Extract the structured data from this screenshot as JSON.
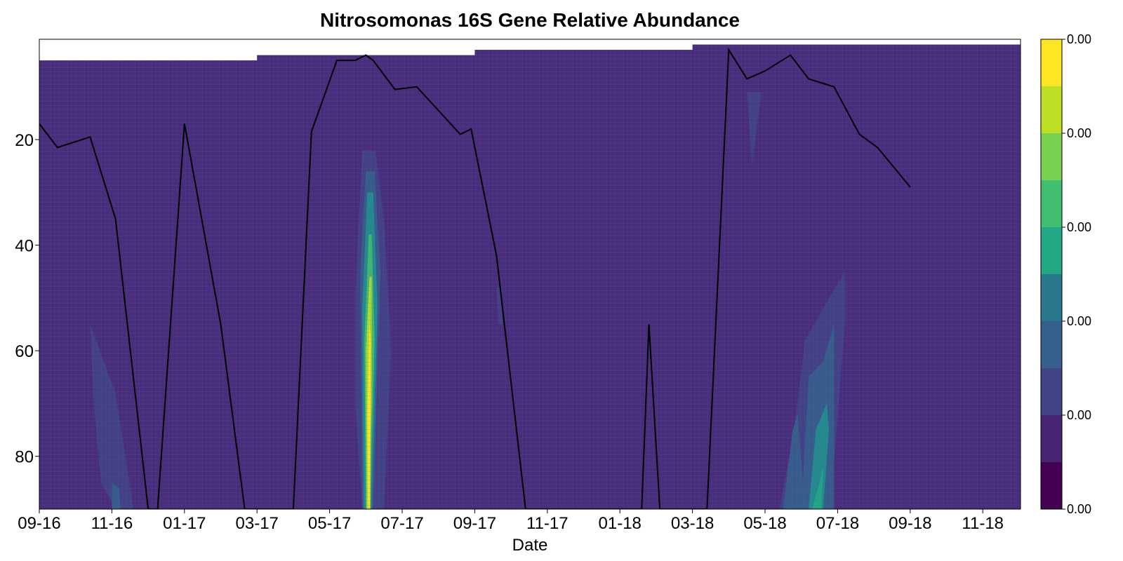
{
  "chart_data": {
    "type": "heatmap",
    "title": "Nitrosomonas 16S Gene Relative Abundance",
    "xlabel": "Date",
    "ylabel": "",
    "x_tick_labels": [
      "09-16",
      "11-16",
      "01-17",
      "03-17",
      "05-17",
      "07-17",
      "09-17",
      "11-17",
      "01-18",
      "03-18",
      "05-18",
      "07-18",
      "09-18",
      "11-18"
    ],
    "y_ticks": [
      20,
      40,
      60,
      80
    ],
    "ylim": [
      90,
      1
    ],
    "y_inverted": true,
    "colorbar": {
      "colormap": "viridis",
      "levels": 10,
      "tick_labels": [
        "0.00",
        "0.00",
        "0.00",
        "0.00",
        "0.00",
        "0.00"
      ]
    },
    "surface_depth": [
      {
        "x": 0.0,
        "y": 5
      },
      {
        "x": 3.0,
        "y": 5
      },
      {
        "x": 3.0,
        "y": 4
      },
      {
        "x": 6.0,
        "y": 4
      },
      {
        "x": 6.0,
        "y": 3
      },
      {
        "x": 9.0,
        "y": 3
      },
      {
        "x": 9.0,
        "y": 2
      },
      {
        "x": 12.0,
        "y": 2
      }
    ],
    "line_series": [
      {
        "x": 0.0,
        "y": 17
      },
      {
        "x": 0.25,
        "y": 21.5
      },
      {
        "x": 0.7,
        "y": 19.5
      },
      {
        "x": 1.05,
        "y": 35
      },
      {
        "x": 1.5,
        "y": 90
      },
      {
        "x": 1.63,
        "y": 90
      },
      {
        "x": 2.0,
        "y": 17
      },
      {
        "x": 2.5,
        "y": 55
      },
      {
        "x": 2.83,
        "y": 90
      },
      {
        "x": 3.5,
        "y": 90
      },
      {
        "x": 3.75,
        "y": 18.5
      },
      {
        "x": 4.1,
        "y": 5
      },
      {
        "x": 4.35,
        "y": 5
      },
      {
        "x": 4.5,
        "y": 4
      },
      {
        "x": 4.6,
        "y": 5
      },
      {
        "x": 4.9,
        "y": 10.5
      },
      {
        "x": 5.2,
        "y": 10
      },
      {
        "x": 5.8,
        "y": 19
      },
      {
        "x": 5.95,
        "y": 18
      },
      {
        "x": 6.3,
        "y": 42
      },
      {
        "x": 6.7,
        "y": 90
      },
      {
        "x": 8.3,
        "y": 90
      },
      {
        "x": 8.4,
        "y": 55
      },
      {
        "x": 8.55,
        "y": 90
      },
      {
        "x": 9.2,
        "y": 90
      },
      {
        "x": 9.5,
        "y": 3
      },
      {
        "x": 9.75,
        "y": 8.5
      },
      {
        "x": 10.0,
        "y": 7
      },
      {
        "x": 10.35,
        "y": 4
      },
      {
        "x": 10.6,
        "y": 8.5
      },
      {
        "x": 10.95,
        "y": 10
      },
      {
        "x": 11.3,
        "y": 19
      },
      {
        "x": 11.55,
        "y": 21.5
      },
      {
        "x": 12.0,
        "y": 29
      }
    ],
    "abundance_patches": [
      {
        "x": [
          0.7,
          1.05,
          1.3,
          1.05,
          0.85,
          0.75
        ],
        "y": [
          55,
          68,
          90,
          90,
          85,
          70
        ],
        "level": 1
      },
      {
        "x": [
          1.0,
          1.1,
          1.12,
          1.0
        ],
        "y": [
          85,
          86,
          90,
          90
        ],
        "level": 2
      },
      {
        "x": [
          4.35,
          4.45,
          4.63,
          4.75,
          4.85,
          4.75,
          4.45,
          4.35
        ],
        "y": [
          50,
          22,
          22,
          35,
          60,
          90,
          90,
          70
        ],
        "level": 1
      },
      {
        "x": [
          4.42,
          4.5,
          4.62,
          4.7,
          4.6,
          4.45
        ],
        "y": [
          45,
          26,
          26,
          45,
          90,
          90
        ],
        "level": 2
      },
      {
        "x": [
          4.45,
          4.52,
          4.6,
          4.66,
          4.58,
          4.47
        ],
        "y": [
          52,
          30,
          30,
          52,
          90,
          90
        ],
        "level": 4
      },
      {
        "x": [
          4.48,
          4.54,
          4.58,
          4.62,
          4.56,
          4.5
        ],
        "y": [
          58,
          38,
          38,
          58,
          90,
          90
        ],
        "level": 6
      },
      {
        "x": [
          4.5,
          4.55,
          4.58,
          4.58,
          4.53,
          4.51
        ],
        "y": [
          60,
          46,
          46,
          70,
          90,
          90
        ],
        "level": 8
      },
      {
        "x": [
          4.52,
          4.55,
          4.57,
          4.56,
          4.53
        ],
        "y": [
          72,
          55,
          58,
          90,
          90
        ],
        "level": 9
      },
      {
        "x": [
          6.3,
          6.35,
          6.38,
          6.33
        ],
        "y": [
          48,
          48,
          55,
          55
        ],
        "level": 1
      },
      {
        "x": [
          9.75,
          9.95,
          9.82
        ],
        "y": [
          11,
          11,
          25
        ],
        "level": 1
      },
      {
        "x": [
          10.2,
          10.4,
          10.55,
          10.8,
          11.1,
          11.1,
          10.9,
          10.4,
          10.2
        ],
        "y": [
          90,
          75,
          58,
          52,
          45,
          55,
          90,
          90,
          90
        ],
        "level": 1
      },
      {
        "x": [
          10.25,
          10.38,
          10.45,
          10.55,
          10.48,
          10.32
        ],
        "y": [
          90,
          75,
          72,
          90,
          90,
          90
        ],
        "level": 2
      },
      {
        "x": [
          10.5,
          10.6,
          10.8,
          10.95,
          10.95,
          10.85,
          10.6
        ],
        "y": [
          90,
          65,
          62,
          55,
          90,
          90,
          90
        ],
        "level": 2
      },
      {
        "x": [
          10.6,
          10.7,
          10.85,
          10.88,
          10.8,
          10.65
        ],
        "y": [
          90,
          75,
          70,
          75,
          90,
          90
        ],
        "level": 4
      },
      {
        "x": [
          10.65,
          10.75,
          10.8,
          10.78,
          10.68
        ],
        "y": [
          90,
          85,
          82,
          90,
          90
        ],
        "level": 5
      }
    ]
  }
}
